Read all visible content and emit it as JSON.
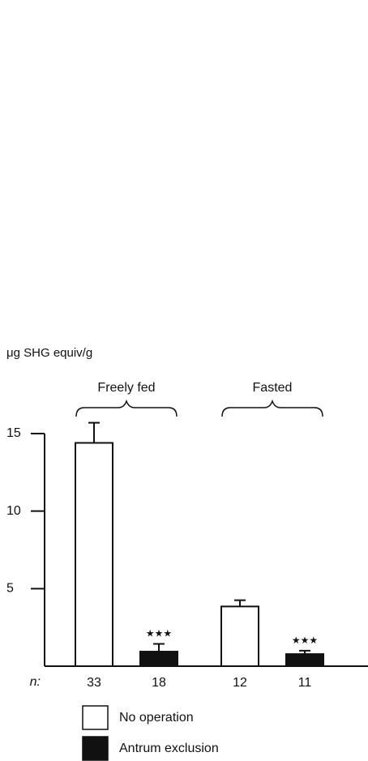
{
  "chart_data": {
    "type": "bar",
    "y_label": "μg SHG equiv/g",
    "categories": [
      "Freely fed",
      "Fasted"
    ],
    "n_label": "n:",
    "series": [
      {
        "name": "No operation",
        "color": "#ffffff",
        "values": [
          14.4,
          3.85
        ],
        "errors": [
          1.3,
          0.4
        ],
        "n": [
          33,
          12
        ]
      },
      {
        "name": "Antrum exclusion",
        "color": "#111111",
        "values": [
          0.94,
          0.78
        ],
        "errors": [
          0.5,
          0.22
        ],
        "n": [
          18,
          11
        ],
        "annotations": [
          "★★★",
          "★★★"
        ]
      }
    ],
    "ylim": [
      0,
      15
    ],
    "yticks": [
      5,
      10,
      15
    ]
  }
}
